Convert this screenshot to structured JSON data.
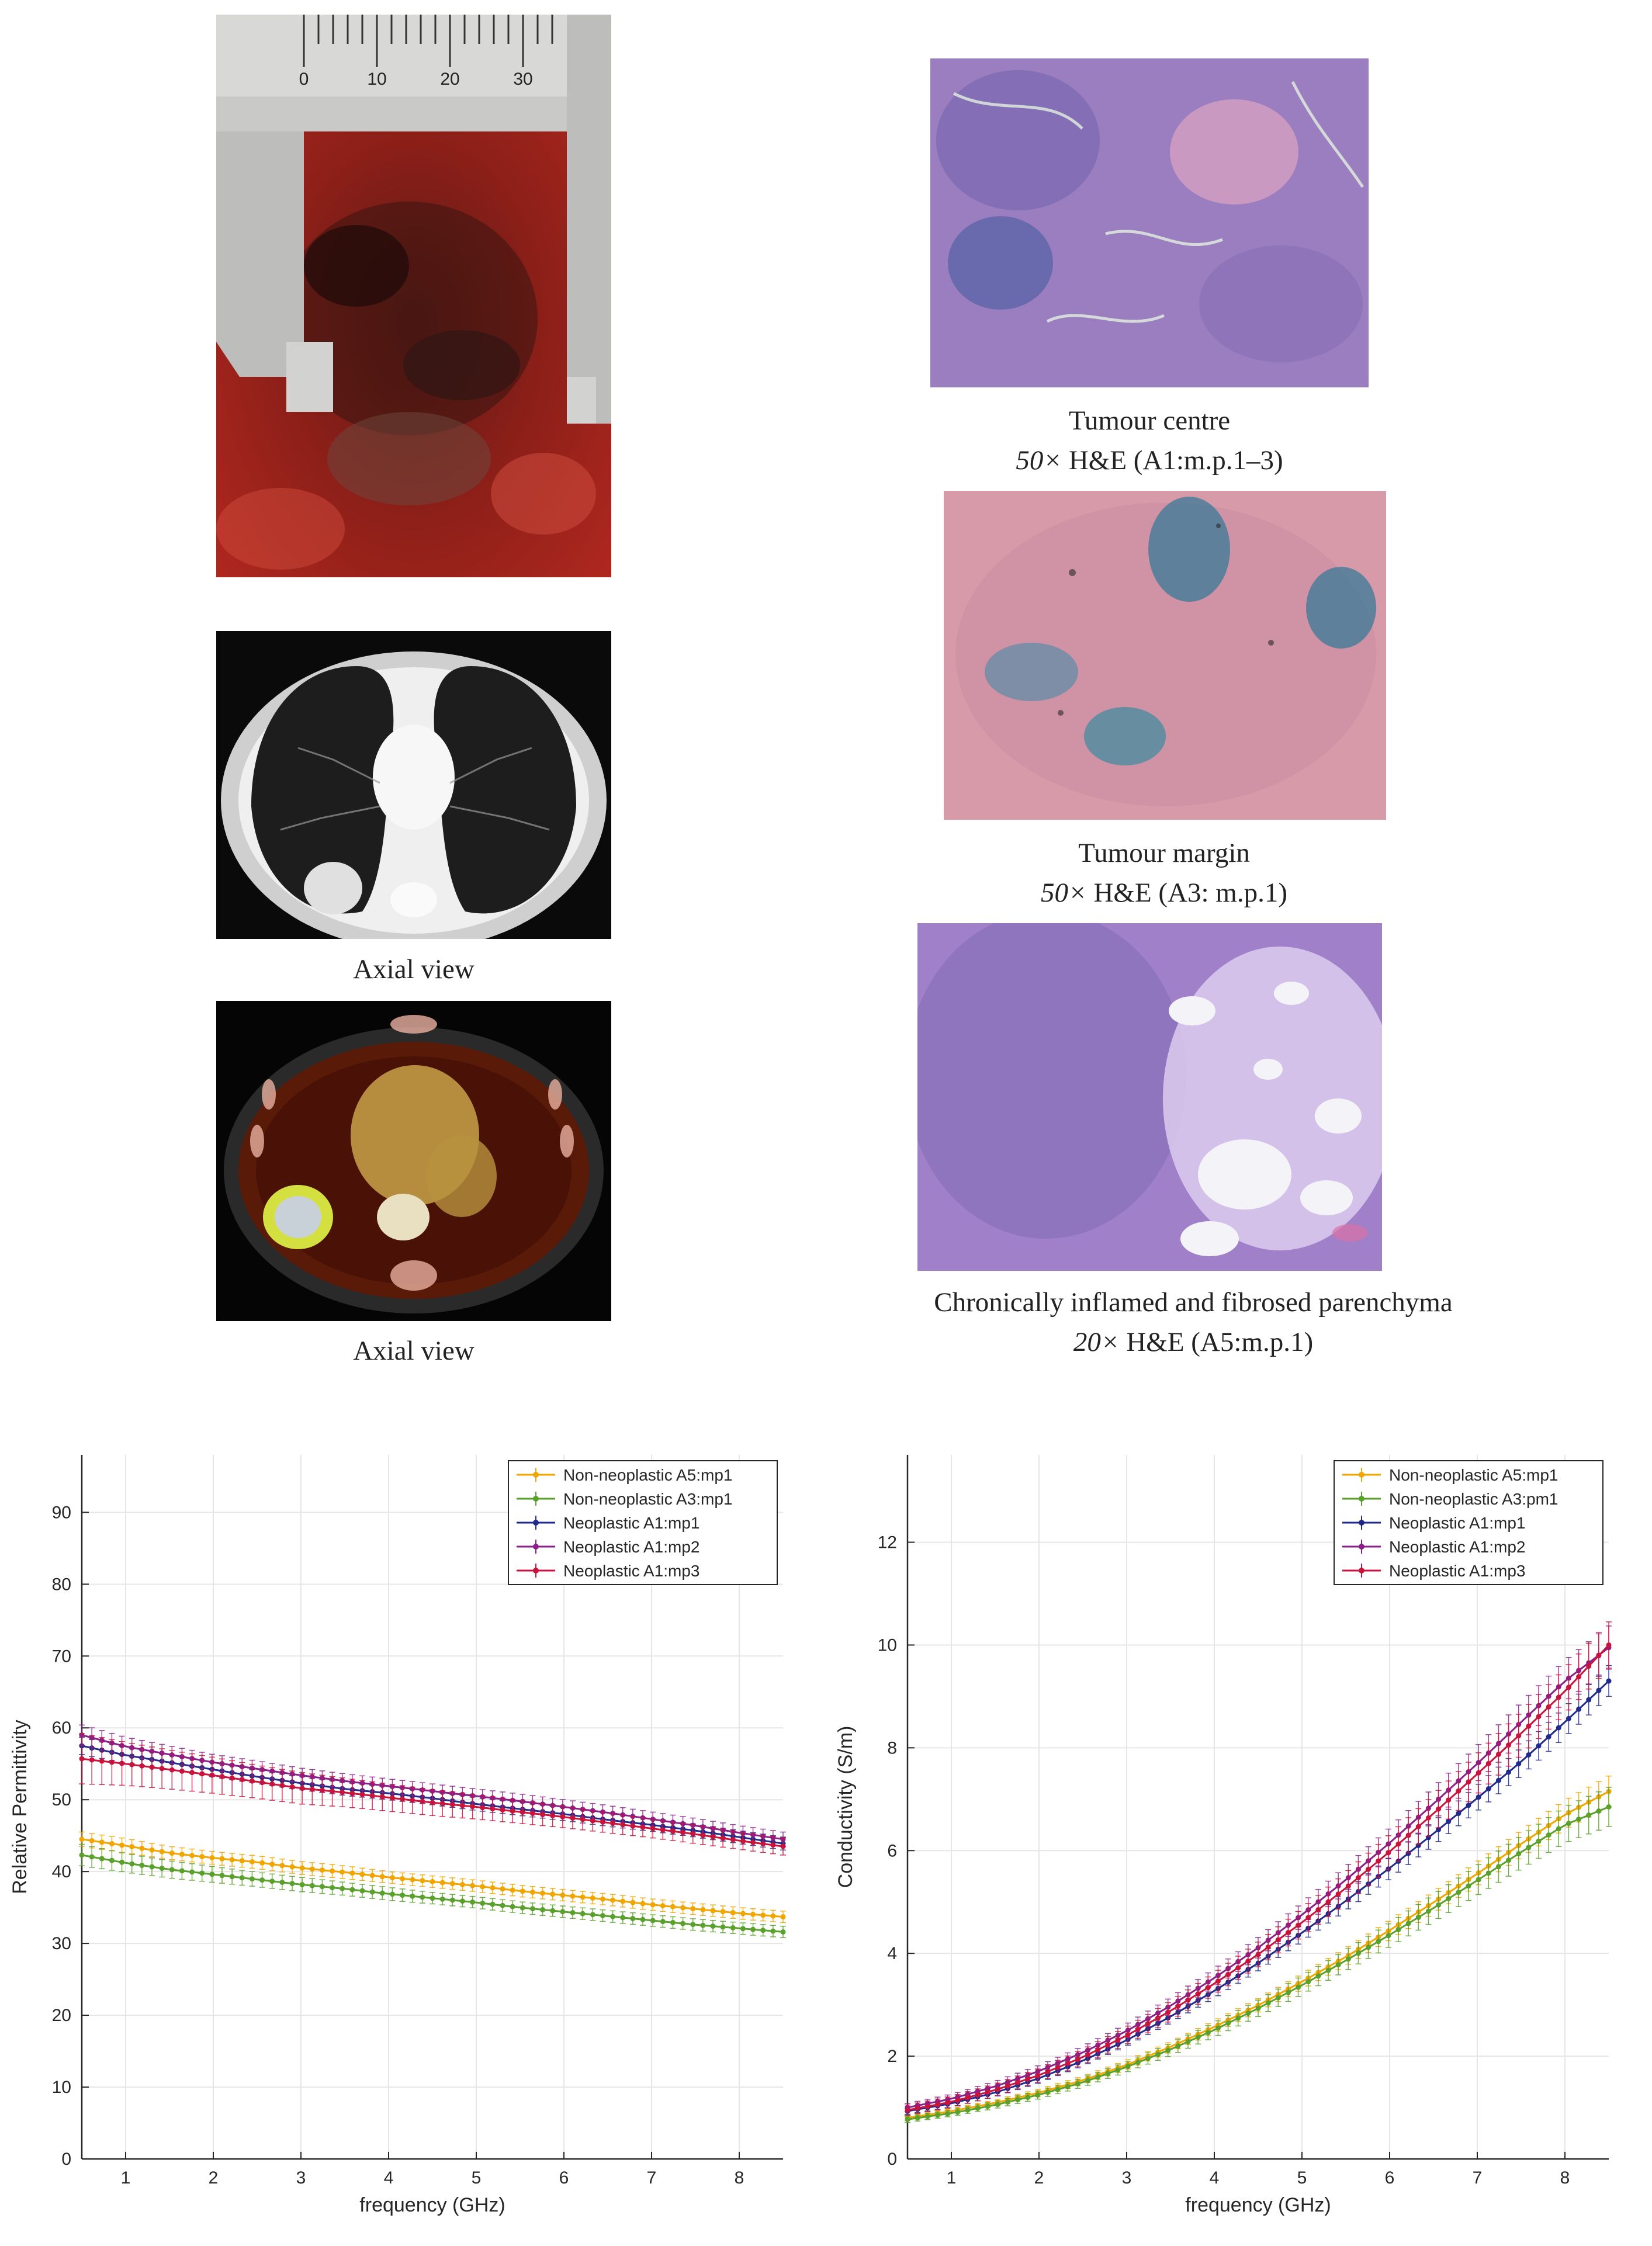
{
  "panels": {
    "specimen_photo": {
      "icon": "caliper-specimen-photo",
      "scale_numbers": [
        "0",
        "10",
        "20",
        "30"
      ]
    },
    "ct_axial": {
      "icon": "ct-scan-image",
      "caption": "Axial view"
    },
    "pet_ct_axial": {
      "icon": "pet-ct-image",
      "caption": "Axial view"
    },
    "histo_centre": {
      "icon": "histology-image",
      "caption_title": "Tumour centre",
      "caption_mag": "50×",
      "caption_detail": " H&E (A1:m.p.1–3)"
    },
    "histo_margin": {
      "icon": "histology-image",
      "caption_title": "Tumour margin",
      "caption_mag": "50×",
      "caption_detail": " H&E (A3: m.p.1)"
    },
    "histo_parenchyma": {
      "icon": "histology-image",
      "caption_title": "Chronically inflamed and fibrosed parenchyma",
      "caption_mag": "20×",
      "caption_detail": " H&E (A5:m.p.1)"
    }
  },
  "colors": {
    "A5": "#f0a500",
    "A3": "#5aa02c",
    "A1mp1": "#1f2a8a",
    "A1mp2": "#8a1f8a",
    "A1mp3": "#c8143c"
  },
  "chart_data": [
    {
      "type": "line",
      "xlabel": "frequency (GHz)",
      "ylabel": "Relative Permittivity",
      "xlim": [
        0.5,
        8.5
      ],
      "ylim": [
        0,
        98
      ],
      "xticks": [
        1,
        2,
        3,
        4,
        5,
        6,
        7,
        8
      ],
      "yticks": [
        0,
        10,
        20,
        30,
        40,
        50,
        60,
        70,
        80,
        90
      ],
      "grid": true,
      "legend_position": "top-right",
      "error_bars": true,
      "x": [
        0.5,
        1,
        1.5,
        2,
        2.5,
        3,
        3.5,
        4,
        4.5,
        5,
        5.5,
        6,
        6.5,
        7,
        7.5,
        8,
        8.5
      ],
      "series": [
        {
          "name": "Non-neoplastic A5:mp1",
          "color": "#f0a500",
          "values": [
            44.5,
            43.6,
            42.6,
            41.9,
            41.3,
            40.5,
            39.9,
            39.2,
            38.6,
            38.0,
            37.3,
            36.7,
            36.1,
            35.4,
            34.8,
            34.2,
            33.7
          ],
          "error": [
            1.0,
            1.0,
            0.9,
            0.9,
            0.9,
            0.9,
            0.9,
            0.8,
            0.8,
            0.8,
            0.8,
            0.8,
            0.8,
            0.8,
            0.8,
            0.8,
            0.8
          ]
        },
        {
          "name": "Non-neoplastic A3:mp1",
          "color": "#5aa02c",
          "values": [
            42.3,
            41.2,
            40.3,
            39.6,
            38.9,
            38.2,
            37.6,
            36.9,
            36.3,
            35.7,
            35.0,
            34.4,
            33.8,
            33.2,
            32.6,
            32.1,
            31.6
          ],
          "error": [
            1.5,
            1.3,
            1.2,
            1.1,
            1.0,
            1.0,
            0.9,
            0.9,
            0.8,
            0.8,
            0.8,
            0.8,
            0.8,
            0.8,
            0.8,
            0.8,
            0.8
          ]
        },
        {
          "name": "Neoplastic A1:mp1",
          "color": "#1f2a8a",
          "values": [
            57.5,
            56.2,
            55.2,
            54.2,
            53.2,
            52.3,
            51.5,
            50.9,
            50.2,
            49.4,
            48.7,
            48.0,
            47.2,
            46.5,
            45.7,
            44.8,
            43.9
          ],
          "error": [
            1.2,
            1.1,
            1.0,
            1.0,
            0.9,
            0.9,
            0.9,
            0.9,
            0.9,
            0.9,
            0.9,
            0.9,
            0.9,
            0.9,
            0.9,
            0.9,
            0.9
          ]
        },
        {
          "name": "Neoplastic A1:mp2",
          "color": "#8a1f8a",
          "values": [
            59.0,
            57.4,
            56.3,
            55.2,
            54.3,
            53.4,
            52.6,
            51.9,
            51.2,
            50.5,
            49.8,
            49.0,
            48.2,
            47.3,
            46.4,
            45.4,
            44.5
          ],
          "error": [
            1.4,
            1.3,
            1.2,
            1.1,
            1.1,
            1.0,
            1.0,
            1.0,
            1.0,
            1.0,
            1.0,
            1.0,
            1.0,
            1.0,
            1.0,
            1.0,
            1.0
          ]
        },
        {
          "name": "Neoplastic A1:mp3",
          "color": "#c8143c",
          "values": [
            55.7,
            55.0,
            54.2,
            53.4,
            52.5,
            51.6,
            51.0,
            50.3,
            49.6,
            49.0,
            48.3,
            47.6,
            46.8,
            46.0,
            45.2,
            44.3,
            43.5
          ],
          "error": [
            3.5,
            3.0,
            2.7,
            2.5,
            2.3,
            2.2,
            2.0,
            1.9,
            1.8,
            1.7,
            1.6,
            1.5,
            1.4,
            1.3,
            1.3,
            1.2,
            1.2
          ]
        }
      ]
    },
    {
      "type": "line",
      "xlabel": "frequency (GHz)",
      "ylabel": "Conductivity (S/m)",
      "xlim": [
        0.5,
        8.5
      ],
      "ylim": [
        0,
        13.7
      ],
      "xticks": [
        1,
        2,
        3,
        4,
        5,
        6,
        7,
        8
      ],
      "yticks": [
        0,
        2,
        4,
        6,
        8,
        10,
        12
      ],
      "grid": true,
      "legend_position": "top-right",
      "error_bars": true,
      "x": [
        0.5,
        1,
        1.5,
        2,
        2.5,
        3,
        3.5,
        4,
        4.5,
        5,
        5.5,
        6,
        6.5,
        7,
        7.5,
        8,
        8.5
      ],
      "series": [
        {
          "name": "Non-neoplastic A5:mp1",
          "color": "#f0a500",
          "values": [
            0.8,
            0.93,
            1.09,
            1.29,
            1.53,
            1.83,
            2.18,
            2.57,
            2.99,
            3.45,
            3.93,
            4.45,
            4.99,
            5.55,
            6.13,
            6.7,
            7.15
          ],
          "error": [
            0.05,
            0.05,
            0.06,
            0.07,
            0.08,
            0.09,
            0.1,
            0.12,
            0.13,
            0.15,
            0.17,
            0.19,
            0.21,
            0.23,
            0.26,
            0.28,
            0.3
          ]
        },
        {
          "name": "Non-neoplastic A3:pm1",
          "color": "#5aa02c",
          "values": [
            0.77,
            0.89,
            1.05,
            1.25,
            1.49,
            1.79,
            2.13,
            2.51,
            2.93,
            3.38,
            3.86,
            4.36,
            4.88,
            5.42,
            5.97,
            6.5,
            6.85
          ],
          "error": [
            0.06,
            0.06,
            0.07,
            0.08,
            0.09,
            0.1,
            0.12,
            0.14,
            0.16,
            0.18,
            0.2,
            0.23,
            0.26,
            0.29,
            0.32,
            0.35,
            0.38
          ]
        },
        {
          "name": "Neoplastic A1:mp1",
          "color": "#1f2a8a",
          "values": [
            0.93,
            1.08,
            1.29,
            1.57,
            1.91,
            2.31,
            2.77,
            3.27,
            3.81,
            4.4,
            5.02,
            5.66,
            6.33,
            7.02,
            7.73,
            8.5,
            9.3
          ],
          "error": [
            0.06,
            0.07,
            0.08,
            0.09,
            0.1,
            0.11,
            0.12,
            0.14,
            0.15,
            0.17,
            0.19,
            0.21,
            0.23,
            0.25,
            0.27,
            0.29,
            0.3
          ]
        },
        {
          "name": "Neoplastic A1:mp2",
          "color": "#8a1f8a",
          "values": [
            1.0,
            1.17,
            1.41,
            1.71,
            2.07,
            2.49,
            2.98,
            3.52,
            4.11,
            4.75,
            5.43,
            6.15,
            6.91,
            7.69,
            8.5,
            9.3,
            9.95
          ],
          "error": [
            0.08,
            0.09,
            0.1,
            0.11,
            0.12,
            0.14,
            0.16,
            0.18,
            0.2,
            0.23,
            0.26,
            0.29,
            0.32,
            0.35,
            0.38,
            0.4,
            0.42
          ]
        },
        {
          "name": "Neoplastic A1:mp3",
          "color": "#c8143c",
          "values": [
            0.95,
            1.11,
            1.34,
            1.63,
            1.98,
            2.4,
            2.88,
            3.41,
            3.98,
            4.6,
            5.27,
            5.98,
            6.72,
            7.49,
            8.28,
            9.1,
            10.0
          ],
          "error": [
            0.1,
            0.11,
            0.12,
            0.13,
            0.15,
            0.17,
            0.19,
            0.21,
            0.24,
            0.27,
            0.3,
            0.33,
            0.36,
            0.39,
            0.42,
            0.44,
            0.45
          ]
        }
      ]
    }
  ]
}
